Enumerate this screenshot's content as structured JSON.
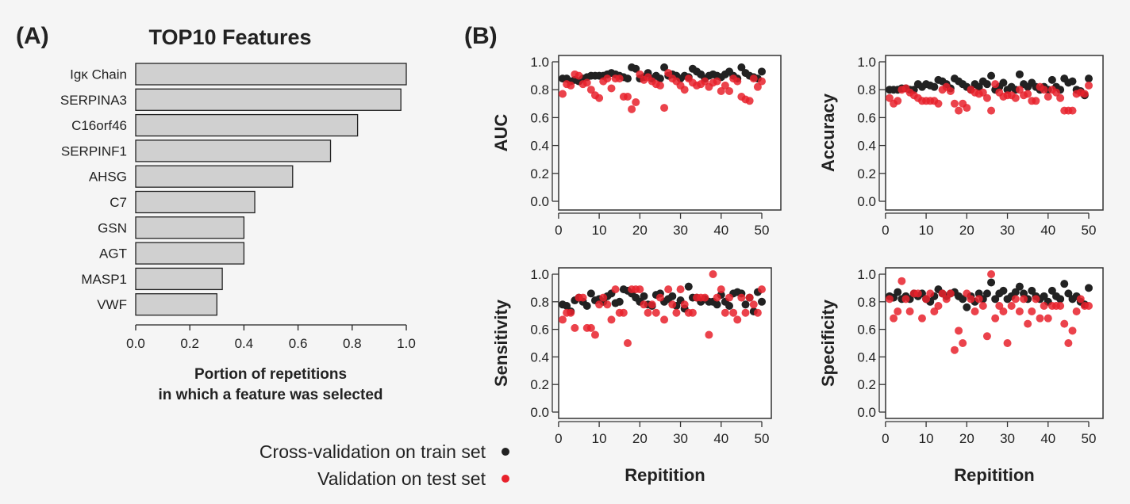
{
  "panel_labels": {
    "a": "(A)",
    "b": "(B)"
  },
  "legend": {
    "train": "Cross-validation on train set",
    "test": "Validation on test set"
  },
  "colors": {
    "train": "#222222",
    "test": "#e8212b",
    "bar": "#d0d0d0"
  },
  "chart_data": [
    {
      "type": "bar",
      "orientation": "horizontal",
      "title": "TOP10 Features",
      "xlabel": "Portion of repetitions in which a feature was selected",
      "xlabel_lines": [
        "Portion of repetitions",
        "in which a feature was selected"
      ],
      "categories": [
        "Igκ Chain",
        "SERPINA3",
        "C16orf46",
        "SERPINF1",
        "AHSG",
        "C7",
        "GSN",
        "AGT",
        "MASP1",
        "VWF"
      ],
      "values": [
        1.0,
        0.98,
        0.82,
        0.72,
        0.58,
        0.44,
        0.4,
        0.4,
        0.32,
        0.3
      ],
      "xlim": [
        0,
        1
      ],
      "xticks": [
        "0.0",
        "0.2",
        "0.4",
        "0.6",
        "0.8",
        "1.0"
      ]
    },
    {
      "type": "scatter",
      "ylabel": "AUC",
      "xlabel": "",
      "xlim": [
        1,
        50
      ],
      "ylim": [
        0,
        1
      ],
      "xticks": [
        "0",
        "10",
        "20",
        "30",
        "40",
        "50"
      ],
      "yticks": [
        "0.0",
        "0.2",
        "0.4",
        "0.6",
        "0.8",
        "1.0"
      ],
      "series": [
        {
          "name": "Cross-validation on train set",
          "values": [
            0.88,
            0.88,
            0.86,
            0.87,
            0.86,
            0.88,
            0.89,
            0.9,
            0.9,
            0.9,
            0.9,
            0.91,
            0.92,
            0.91,
            0.9,
            0.89,
            0.88,
            0.96,
            0.95,
            0.88,
            0.89,
            0.92,
            0.88,
            0.9,
            0.88,
            0.96,
            0.9,
            0.91,
            0.9,
            0.88,
            0.9,
            0.89,
            0.95,
            0.93,
            0.91,
            0.88,
            0.9,
            0.91,
            0.9,
            0.89,
            0.91,
            0.93,
            0.9,
            0.88,
            0.96,
            0.92,
            0.9,
            0.89,
            0.88,
            0.93
          ]
        },
        {
          "name": "Validation on test set",
          "values": [
            0.77,
            0.84,
            0.83,
            0.91,
            0.9,
            0.84,
            0.85,
            0.8,
            0.76,
            0.74,
            0.86,
            0.88,
            0.81,
            0.88,
            0.88,
            0.75,
            0.75,
            0.66,
            0.71,
            0.91,
            0.87,
            0.89,
            0.86,
            0.84,
            0.83,
            0.67,
            0.92,
            0.88,
            0.86,
            0.83,
            0.8,
            0.88,
            0.85,
            0.83,
            0.84,
            0.86,
            0.82,
            0.85,
            0.86,
            0.79,
            0.83,
            0.79,
            0.88,
            0.86,
            0.75,
            0.73,
            0.72,
            0.88,
            0.82,
            0.86
          ]
        }
      ]
    },
    {
      "type": "scatter",
      "ylabel": "Accuracy",
      "xlabel": "",
      "xlim": [
        1,
        50
      ],
      "ylim": [
        0,
        1
      ],
      "xticks": [
        "0",
        "10",
        "20",
        "30",
        "40",
        "50"
      ],
      "yticks": [
        "0.0",
        "0.2",
        "0.4",
        "0.6",
        "0.8",
        "1.0"
      ],
      "series": [
        {
          "name": "Cross-validation on train set",
          "values": [
            0.8,
            0.8,
            0.8,
            0.81,
            0.81,
            0.8,
            0.8,
            0.84,
            0.82,
            0.84,
            0.83,
            0.82,
            0.87,
            0.86,
            0.84,
            0.81,
            0.88,
            0.86,
            0.84,
            0.82,
            0.8,
            0.84,
            0.82,
            0.86,
            0.84,
            0.9,
            0.8,
            0.82,
            0.85,
            0.8,
            0.82,
            0.8,
            0.91,
            0.84,
            0.82,
            0.85,
            0.82,
            0.8,
            0.82,
            0.8,
            0.87,
            0.82,
            0.8,
            0.88,
            0.85,
            0.86,
            0.8,
            0.79,
            0.76,
            0.88
          ]
        },
        {
          "name": "Validation on test set",
          "values": [
            0.74,
            0.7,
            0.72,
            0.8,
            0.81,
            0.78,
            0.76,
            0.74,
            0.72,
            0.72,
            0.72,
            0.72,
            0.7,
            0.8,
            0.82,
            0.79,
            0.7,
            0.65,
            0.7,
            0.67,
            0.8,
            0.78,
            0.77,
            0.78,
            0.74,
            0.65,
            0.84,
            0.78,
            0.75,
            0.76,
            0.76,
            0.74,
            0.8,
            0.76,
            0.77,
            0.72,
            0.72,
            0.82,
            0.8,
            0.75,
            0.8,
            0.78,
            0.74,
            0.65,
            0.65,
            0.65,
            0.77,
            0.78,
            0.77,
            0.83
          ]
        }
      ]
    },
    {
      "type": "scatter",
      "ylabel": "Sensitivity",
      "xlabel": "Repitition",
      "xlim": [
        1,
        50
      ],
      "ylim": [
        0,
        1
      ],
      "xticks": [
        "0",
        "10",
        "20",
        "30",
        "40",
        "50"
      ],
      "yticks": [
        "0.0",
        "0.2",
        "0.4",
        "0.6",
        "0.8",
        "1.0"
      ],
      "series": [
        {
          "name": "Cross-validation on train set",
          "values": [
            0.78,
            0.77,
            0.73,
            0.81,
            0.83,
            0.8,
            0.77,
            0.86,
            0.81,
            0.82,
            0.8,
            0.84,
            0.86,
            0.79,
            0.8,
            0.89,
            0.88,
            0.86,
            0.83,
            0.8,
            0.84,
            0.78,
            0.77,
            0.85,
            0.86,
            0.8,
            0.82,
            0.84,
            0.77,
            0.81,
            0.75,
            0.91,
            0.83,
            0.83,
            0.8,
            0.82,
            0.8,
            0.8,
            0.78,
            0.85,
            0.8,
            0.77,
            0.86,
            0.87,
            0.86,
            0.78,
            0.83,
            0.73,
            0.87,
            0.8
          ]
        },
        {
          "name": "Validation on test set",
          "values": [
            0.67,
            0.72,
            0.72,
            0.61,
            0.83,
            0.83,
            0.61,
            0.61,
            0.56,
            0.78,
            0.83,
            0.78,
            0.67,
            0.89,
            0.72,
            0.72,
            0.5,
            0.89,
            0.89,
            0.89,
            0.78,
            0.72,
            0.78,
            0.72,
            0.83,
            0.67,
            0.89,
            0.78,
            0.72,
            0.89,
            0.78,
            0.72,
            0.72,
            0.83,
            0.83,
            0.83,
            0.56,
            1.0,
            0.83,
            0.89,
            0.72,
            0.83,
            0.72,
            0.67,
            0.83,
            0.72,
            0.83,
            0.78,
            0.72,
            0.89
          ]
        }
      ]
    },
    {
      "type": "scatter",
      "ylabel": "Specificity",
      "xlabel": "Repitition",
      "xlim": [
        1,
        50
      ],
      "ylim": [
        0,
        1
      ],
      "xticks": [
        "0",
        "10",
        "20",
        "30",
        "40",
        "50"
      ],
      "yticks": [
        "0.0",
        "0.2",
        "0.4",
        "0.6",
        "0.8",
        "1.0"
      ],
      "series": [
        {
          "name": "Cross-validation on train set",
          "values": [
            0.84,
            0.83,
            0.87,
            0.82,
            0.84,
            0.82,
            0.86,
            0.84,
            0.86,
            0.82,
            0.8,
            0.84,
            0.89,
            0.86,
            0.84,
            0.86,
            0.87,
            0.84,
            0.82,
            0.76,
            0.84,
            0.8,
            0.86,
            0.82,
            0.86,
            0.94,
            0.82,
            0.86,
            0.88,
            0.82,
            0.84,
            0.87,
            0.91,
            0.86,
            0.82,
            0.88,
            0.84,
            0.82,
            0.84,
            0.8,
            0.88,
            0.84,
            0.82,
            0.93,
            0.86,
            0.82,
            0.84,
            0.8,
            0.78,
            0.9
          ]
        },
        {
          "name": "Validation on test set",
          "values": [
            0.82,
            0.68,
            0.73,
            0.95,
            0.82,
            0.73,
            0.86,
            0.86,
            0.68,
            0.82,
            0.86,
            0.73,
            0.77,
            0.86,
            0.82,
            0.86,
            0.45,
            0.59,
            0.5,
            0.86,
            0.82,
            0.73,
            0.82,
            0.77,
            0.55,
            1.0,
            0.68,
            0.77,
            0.73,
            0.5,
            0.77,
            0.82,
            0.73,
            0.82,
            0.64,
            0.73,
            0.82,
            0.68,
            0.77,
            0.68,
            0.77,
            0.77,
            0.77,
            0.64,
            0.5,
            0.59,
            0.73,
            0.82,
            0.77,
            0.77
          ]
        }
      ]
    }
  ]
}
